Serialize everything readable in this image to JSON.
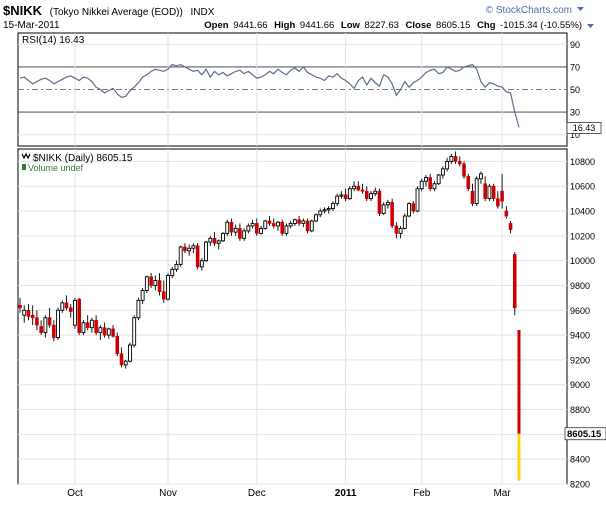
{
  "header": {
    "symbol": "$NIKK",
    "name": "(Tokyo Nikkei Average (EOD))",
    "exchange": "INDX",
    "watermark": "© StockCharts.com",
    "date": "15-Mar-2011",
    "quote": {
      "open_label": "Open",
      "open": "9441.66",
      "high_label": "High",
      "high": "9441.66",
      "low_label": "Low",
      "low": "8227.63",
      "close_label": "Close",
      "close": "8605.15",
      "chg_label": "Chg",
      "chg": "-1015.34 (-10.55%)"
    }
  },
  "colors": {
    "up_candle": "#000000",
    "down_candle": "#cc0000",
    "last_candle": "#ffd400",
    "rsi_line": "#5a6e8c",
    "volume_legend": "#2e7d32",
    "grid": "#e2e2e2",
    "marker": "#4a6ea9"
  },
  "chart_data": [
    {
      "type": "line",
      "label": "RSI(14) 16.43",
      "last_value_label": "16.43",
      "ylim": [
        0,
        100
      ],
      "y_ticks": [
        10,
        30,
        50,
        70,
        90
      ],
      "reference_lines": [
        30,
        50,
        70
      ],
      "values": [
        60,
        61,
        58,
        55,
        57,
        59,
        60,
        58,
        55,
        57,
        59,
        61,
        62,
        60,
        58,
        61,
        60,
        57,
        52,
        50,
        47,
        49,
        51,
        46,
        43,
        44,
        49,
        52,
        56,
        61,
        63,
        66,
        68,
        67,
        66,
        68,
        72,
        71,
        72,
        70,
        68,
        66,
        67,
        63,
        68,
        61,
        66,
        63,
        65,
        62,
        64,
        66,
        67,
        64,
        66,
        63,
        60,
        61,
        63,
        66,
        64,
        68,
        65,
        63,
        67,
        69,
        66,
        70,
        65,
        63,
        61,
        60,
        58,
        62,
        61,
        64,
        60,
        58,
        55,
        51,
        58,
        61,
        54,
        60,
        56,
        53,
        63,
        61,
        55,
        45,
        50,
        57,
        52,
        56,
        58,
        61,
        65,
        67,
        68,
        64,
        65,
        70,
        68,
        66,
        67,
        70,
        71,
        72,
        68,
        57,
        52,
        56,
        55,
        53,
        52,
        48,
        47,
        30,
        16.43
      ]
    },
    {
      "type": "candlestick",
      "label": "$NIKK (Daily) 8605.15",
      "legend_volume": "Volume undef",
      "last_value_label": "8605.15",
      "ylim": [
        8200,
        10900
      ],
      "y_ticks": [
        8200,
        8400,
        8600,
        8800,
        9000,
        9200,
        9400,
        9600,
        9800,
        10000,
        10200,
        10400,
        10600,
        10800
      ],
      "x_ticks": [
        {
          "label": "Oct",
          "index": 13
        },
        {
          "label": "Nov",
          "index": 35
        },
        {
          "label": "Dec",
          "index": 56
        },
        {
          "label": "2011",
          "index": 77
        },
        {
          "label": "Feb",
          "index": 95
        },
        {
          "label": "Mar",
          "index": 114
        }
      ],
      "ohlc": [
        {
          "o": 9640,
          "h": 9700,
          "l": 9580,
          "c": 9620
        },
        {
          "o": 9560,
          "h": 9640,
          "l": 9500,
          "c": 9600
        },
        {
          "o": 9600,
          "h": 9650,
          "l": 9520,
          "c": 9550
        },
        {
          "o": 9560,
          "h": 9640,
          "l": 9480,
          "c": 9540
        },
        {
          "o": 9540,
          "h": 9600,
          "l": 9440,
          "c": 9480
        },
        {
          "o": 9470,
          "h": 9520,
          "l": 9400,
          "c": 9420
        },
        {
          "o": 9420,
          "h": 9560,
          "l": 9380,
          "c": 9540
        },
        {
          "o": 9540,
          "h": 9620,
          "l": 9460,
          "c": 9480
        },
        {
          "o": 9480,
          "h": 9520,
          "l": 9350,
          "c": 9380
        },
        {
          "o": 9380,
          "h": 9620,
          "l": 9360,
          "c": 9600
        },
        {
          "o": 9600,
          "h": 9680,
          "l": 9580,
          "c": 9660
        },
        {
          "o": 9660,
          "h": 9720,
          "l": 9600,
          "c": 9620
        },
        {
          "o": 9620,
          "h": 9650,
          "l": 9540,
          "c": 9590
        },
        {
          "o": 9480,
          "h": 9700,
          "l": 9450,
          "c": 9680
        },
        {
          "o": 9690,
          "h": 9700,
          "l": 9400,
          "c": 9420
        },
        {
          "o": 9420,
          "h": 9520,
          "l": 9400,
          "c": 9500
        },
        {
          "o": 9500,
          "h": 9560,
          "l": 9440,
          "c": 9460
        },
        {
          "o": 9460,
          "h": 9540,
          "l": 9420,
          "c": 9520
        },
        {
          "o": 9520,
          "h": 9560,
          "l": 9400,
          "c": 9420
        },
        {
          "o": 9420,
          "h": 9480,
          "l": 9360,
          "c": 9460
        },
        {
          "o": 9460,
          "h": 9500,
          "l": 9380,
          "c": 9400
        },
        {
          "o": 9400,
          "h": 9460,
          "l": 9370,
          "c": 9450
        },
        {
          "o": 9450,
          "h": 9480,
          "l": 9380,
          "c": 9390
        },
        {
          "o": 9390,
          "h": 9420,
          "l": 9230,
          "c": 9250
        },
        {
          "o": 9250,
          "h": 9300,
          "l": 9140,
          "c": 9160
        },
        {
          "o": 9160,
          "h": 9200,
          "l": 9130,
          "c": 9190
        },
        {
          "o": 9190,
          "h": 9340,
          "l": 9180,
          "c": 9320
        },
        {
          "o": 9320,
          "h": 9560,
          "l": 9300,
          "c": 9540
        },
        {
          "o": 9540,
          "h": 9700,
          "l": 9520,
          "c": 9680
        },
        {
          "o": 9680,
          "h": 9780,
          "l": 9650,
          "c": 9760
        },
        {
          "o": 9760,
          "h": 9880,
          "l": 9740,
          "c": 9870
        },
        {
          "o": 9870,
          "h": 9900,
          "l": 9780,
          "c": 9800
        },
        {
          "o": 9800,
          "h": 9880,
          "l": 9760,
          "c": 9840
        },
        {
          "o": 9840,
          "h": 9900,
          "l": 9720,
          "c": 9750
        },
        {
          "o": 9750,
          "h": 9840,
          "l": 9660,
          "c": 9690
        },
        {
          "o": 9690,
          "h": 9900,
          "l": 9680,
          "c": 9880
        },
        {
          "o": 9880,
          "h": 9950,
          "l": 9860,
          "c": 9930
        },
        {
          "o": 9930,
          "h": 10000,
          "l": 9910,
          "c": 9970
        },
        {
          "o": 9970,
          "h": 10120,
          "l": 9950,
          "c": 10110
        },
        {
          "o": 10110,
          "h": 10140,
          "l": 10060,
          "c": 10080
        },
        {
          "o": 10080,
          "h": 10130,
          "l": 10040,
          "c": 10100
        },
        {
          "o": 10100,
          "h": 10140,
          "l": 10060,
          "c": 10120
        },
        {
          "o": 10120,
          "h": 10140,
          "l": 9930,
          "c": 9950
        },
        {
          "o": 9950,
          "h": 10020,
          "l": 9920,
          "c": 10000
        },
        {
          "o": 10000,
          "h": 10160,
          "l": 9990,
          "c": 10150
        },
        {
          "o": 10150,
          "h": 10200,
          "l": 10120,
          "c": 10180
        },
        {
          "o": 10180,
          "h": 10230,
          "l": 10120,
          "c": 10140
        },
        {
          "o": 10140,
          "h": 10170,
          "l": 10090,
          "c": 10160
        },
        {
          "o": 10160,
          "h": 10230,
          "l": 10150,
          "c": 10220
        },
        {
          "o": 10220,
          "h": 10330,
          "l": 10200,
          "c": 10310
        },
        {
          "o": 10310,
          "h": 10340,
          "l": 10200,
          "c": 10230
        },
        {
          "o": 10230,
          "h": 10290,
          "l": 10200,
          "c": 10260
        },
        {
          "o": 10260,
          "h": 10300,
          "l": 10160,
          "c": 10180
        },
        {
          "o": 10180,
          "h": 10260,
          "l": 10160,
          "c": 10240
        },
        {
          "o": 10240,
          "h": 10300,
          "l": 10220,
          "c": 10280
        },
        {
          "o": 10280,
          "h": 10330,
          "l": 10260,
          "c": 10300
        },
        {
          "o": 10300,
          "h": 10340,
          "l": 10200,
          "c": 10220
        },
        {
          "o": 10220,
          "h": 10280,
          "l": 10210,
          "c": 10260
        },
        {
          "o": 10260,
          "h": 10330,
          "l": 10250,
          "c": 10320
        },
        {
          "o": 10320,
          "h": 10360,
          "l": 10280,
          "c": 10300
        },
        {
          "o": 10300,
          "h": 10340,
          "l": 10260,
          "c": 10280
        },
        {
          "o": 10280,
          "h": 10320,
          "l": 10240,
          "c": 10310
        },
        {
          "o": 10310,
          "h": 10330,
          "l": 10200,
          "c": 10220
        },
        {
          "o": 10220,
          "h": 10300,
          "l": 10200,
          "c": 10280
        },
        {
          "o": 10280,
          "h": 10320,
          "l": 10260,
          "c": 10300
        },
        {
          "o": 10300,
          "h": 10340,
          "l": 10280,
          "c": 10330
        },
        {
          "o": 10330,
          "h": 10360,
          "l": 10280,
          "c": 10300
        },
        {
          "o": 10300,
          "h": 10340,
          "l": 10270,
          "c": 10320
        },
        {
          "o": 10320,
          "h": 10340,
          "l": 10220,
          "c": 10240
        },
        {
          "o": 10240,
          "h": 10330,
          "l": 10230,
          "c": 10320
        },
        {
          "o": 10320,
          "h": 10380,
          "l": 10310,
          "c": 10370
        },
        {
          "o": 10370,
          "h": 10420,
          "l": 10350,
          "c": 10400
        },
        {
          "o": 10400,
          "h": 10430,
          "l": 10380,
          "c": 10410
        },
        {
          "o": 10410,
          "h": 10440,
          "l": 10380,
          "c": 10420
        },
        {
          "o": 10420,
          "h": 10480,
          "l": 10400,
          "c": 10460
        },
        {
          "o": 10460,
          "h": 10540,
          "l": 10440,
          "c": 10520
        },
        {
          "o": 10520,
          "h": 10560,
          "l": 10500,
          "c": 10530
        },
        {
          "o": 10530,
          "h": 10580,
          "l": 10480,
          "c": 10500
        },
        {
          "o": 10500,
          "h": 10600,
          "l": 10490,
          "c": 10580
        },
        {
          "o": 10580,
          "h": 10640,
          "l": 10560,
          "c": 10600
        },
        {
          "o": 10600,
          "h": 10640,
          "l": 10560,
          "c": 10570
        },
        {
          "o": 10570,
          "h": 10620,
          "l": 10540,
          "c": 10560
        },
        {
          "o": 10560,
          "h": 10600,
          "l": 10480,
          "c": 10500
        },
        {
          "o": 10500,
          "h": 10560,
          "l": 10480,
          "c": 10540
        },
        {
          "o": 10540,
          "h": 10590,
          "l": 10520,
          "c": 10560
        },
        {
          "o": 10560,
          "h": 10580,
          "l": 10360,
          "c": 10380
        },
        {
          "o": 10380,
          "h": 10470,
          "l": 10370,
          "c": 10450
        },
        {
          "o": 10450,
          "h": 10490,
          "l": 10420,
          "c": 10470
        },
        {
          "o": 10470,
          "h": 10500,
          "l": 10260,
          "c": 10280
        },
        {
          "o": 10280,
          "h": 10310,
          "l": 10180,
          "c": 10220
        },
        {
          "o": 10220,
          "h": 10280,
          "l": 10180,
          "c": 10260
        },
        {
          "o": 10260,
          "h": 10380,
          "l": 10250,
          "c": 10360
        },
        {
          "o": 10360,
          "h": 10470,
          "l": 10350,
          "c": 10460
        },
        {
          "o": 10460,
          "h": 10480,
          "l": 10380,
          "c": 10400
        },
        {
          "o": 10400,
          "h": 10600,
          "l": 10390,
          "c": 10580
        },
        {
          "o": 10580,
          "h": 10660,
          "l": 10560,
          "c": 10640
        },
        {
          "o": 10640,
          "h": 10690,
          "l": 10600,
          "c": 10670
        },
        {
          "o": 10670,
          "h": 10700,
          "l": 10560,
          "c": 10580
        },
        {
          "o": 10580,
          "h": 10640,
          "l": 10560,
          "c": 10620
        },
        {
          "o": 10620,
          "h": 10700,
          "l": 10610,
          "c": 10690
        },
        {
          "o": 10690,
          "h": 10760,
          "l": 10660,
          "c": 10740
        },
        {
          "o": 10740,
          "h": 10830,
          "l": 10720,
          "c": 10800
        },
        {
          "o": 10800,
          "h": 10860,
          "l": 10780,
          "c": 10840
        },
        {
          "o": 10840,
          "h": 10880,
          "l": 10780,
          "c": 10800
        },
        {
          "o": 10800,
          "h": 10840,
          "l": 10760,
          "c": 10780
        },
        {
          "o": 10780,
          "h": 10800,
          "l": 10660,
          "c": 10680
        },
        {
          "o": 10680,
          "h": 10700,
          "l": 10560,
          "c": 10580
        },
        {
          "o": 10560,
          "h": 10620,
          "l": 10440,
          "c": 10460
        },
        {
          "o": 10460,
          "h": 10680,
          "l": 10440,
          "c": 10660
        },
        {
          "o": 10660,
          "h": 10720,
          "l": 10620,
          "c": 10700
        },
        {
          "o": 10620,
          "h": 10680,
          "l": 10480,
          "c": 10500
        },
        {
          "o": 10500,
          "h": 10620,
          "l": 10480,
          "c": 10600
        },
        {
          "o": 10600,
          "h": 10620,
          "l": 10480,
          "c": 10500
        },
        {
          "o": 10500,
          "h": 10560,
          "l": 10420,
          "c": 10440
        },
        {
          "o": 10560,
          "h": 10700,
          "l": 10420,
          "c": 10480
        },
        {
          "o": 10400,
          "h": 10440,
          "l": 10340,
          "c": 10360
        },
        {
          "o": 10300,
          "h": 10320,
          "l": 10220,
          "c": 10250
        },
        {
          "o": 10050,
          "h": 10070,
          "l": 9560,
          "c": 9620
        },
        {
          "o": 9441.66,
          "h": 9441.66,
          "l": 8227.63,
          "c": 8605.15
        }
      ]
    }
  ]
}
